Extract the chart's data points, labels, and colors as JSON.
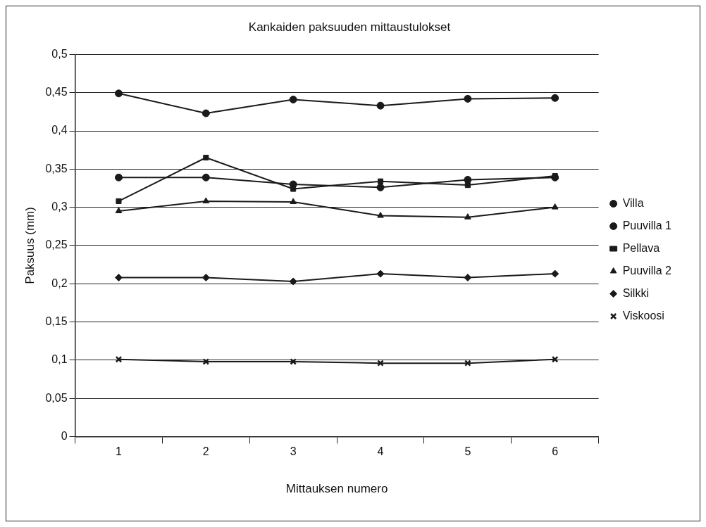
{
  "chart_data": {
    "type": "line",
    "title": "Kankaiden paksuuden mittaustulokset",
    "xlabel": "Mittauksen numero",
    "ylabel": "Paksuus (mm)",
    "categories": [
      "1",
      "2",
      "3",
      "4",
      "5",
      "6"
    ],
    "ylim": [
      0,
      0.5
    ],
    "yticks": [
      {
        "value": 0,
        "label": "0"
      },
      {
        "value": 0.05,
        "label": "0,05"
      },
      {
        "value": 0.1,
        "label": "0,1"
      },
      {
        "value": 0.15,
        "label": "0,15"
      },
      {
        "value": 0.2,
        "label": "0,2"
      },
      {
        "value": 0.25,
        "label": "0,25"
      },
      {
        "value": 0.3,
        "label": "0,3"
      },
      {
        "value": 0.35,
        "label": "0,35"
      },
      {
        "value": 0.4,
        "label": "0,4"
      },
      {
        "value": 0.45,
        "label": "0,45"
      },
      {
        "value": 0.5,
        "label": "0,5"
      }
    ],
    "grid": "y",
    "legend": "right",
    "line_style": "solid",
    "series": [
      {
        "name": "Villa",
        "color": "#1a1a1a",
        "marker": "circle",
        "values": [
          0.449,
          0.423,
          0.441,
          0.433,
          0.442,
          0.443
        ]
      },
      {
        "name": "Puuvilla 1",
        "color": "#1a1a1a",
        "marker": "circle",
        "values": [
          0.339,
          0.339,
          0.33,
          0.326,
          0.336,
          0.339
        ]
      },
      {
        "name": "Pellava",
        "color": "#1a1a1a",
        "marker": "square",
        "values": [
          0.308,
          0.365,
          0.324,
          0.334,
          0.329,
          0.341
        ]
      },
      {
        "name": "Puuvilla 2",
        "color": "#1a1a1a",
        "marker": "triangle",
        "values": [
          0.295,
          0.308,
          0.307,
          0.289,
          0.287,
          0.3
        ]
      },
      {
        "name": "Silkki",
        "color": "#1a1a1a",
        "marker": "diamond",
        "values": [
          0.208,
          0.208,
          0.203,
          0.213,
          0.208,
          0.213
        ]
      },
      {
        "name": "Viskoosi",
        "color": "#1a1a1a",
        "marker": "cross",
        "values": [
          0.101,
          0.098,
          0.098,
          0.096,
          0.096,
          0.101
        ]
      }
    ]
  }
}
